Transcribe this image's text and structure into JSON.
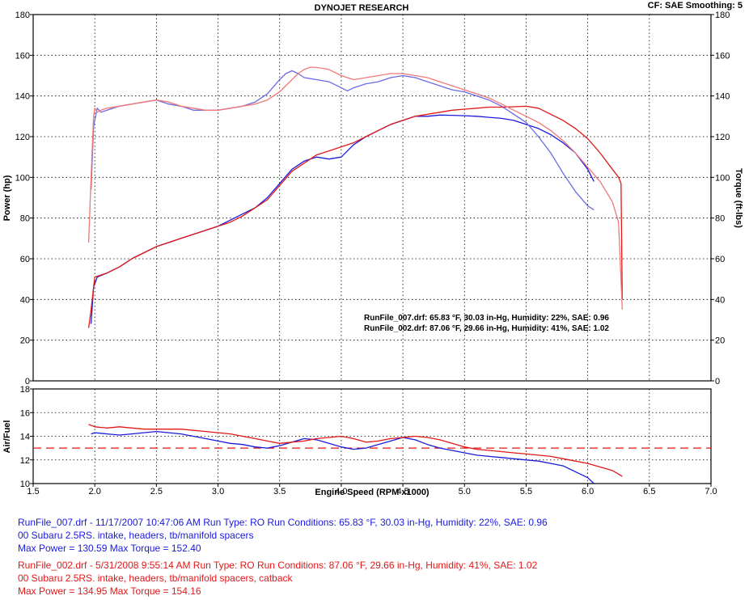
{
  "header": {
    "title": "DYNOJET RESEARCH",
    "settings": "CF: SAE  Smoothing: 5"
  },
  "chart_data": [
    {
      "type": "line",
      "xlabel": "Engine Speed (RPM x1000)",
      "ylabel": "Power (hp)",
      "y2label": "Torque (ft-lbs)",
      "xlim": [
        1.5,
        7.0
      ],
      "ylim": [
        0,
        180
      ],
      "y2lim": [
        0,
        180
      ],
      "grid": true,
      "xticks": [
        "1.5",
        "2.0",
        "2.5",
        "3.0",
        "3.5",
        "4.0",
        "4.5",
        "5.0",
        "5.5",
        "6.0",
        "6.5",
        "7.0"
      ],
      "yticks": [
        "0",
        "20",
        "40",
        "60",
        "80",
        "100",
        "120",
        "140",
        "160",
        "180"
      ],
      "annotations": [
        "RunFile_007.drf: 65.83 °F, 30.03 in-Hg, Humidity: 22%, SAE: 0.96",
        "RunFile_002.drf: 87.06 °F, 29.66 in-Hg, Humidity: 41%, SAE: 1.02"
      ],
      "series": [
        {
          "kind": "power",
          "color": "#1a1adc",
          "x": [
            1.97,
            1.99,
            2.02,
            2.1,
            2.2,
            2.3,
            2.4,
            2.5,
            2.6,
            2.7,
            2.8,
            2.9,
            3.0,
            3.1,
            3.2,
            3.3,
            3.4,
            3.5,
            3.6,
            3.7,
            3.8,
            3.9,
            4.0,
            4.1,
            4.2,
            4.3,
            4.4,
            4.5,
            4.6,
            4.7,
            4.8,
            4.9,
            5.0,
            5.1,
            5.2,
            5.3,
            5.4,
            5.5,
            5.6,
            5.7,
            5.8,
            5.9,
            6.0,
            6.05
          ],
          "y": [
            28,
            46,
            51,
            53,
            56,
            60,
            63,
            66,
            68,
            70,
            72,
            74,
            76,
            79,
            82,
            85,
            90,
            97,
            104,
            108,
            110,
            109,
            110,
            116,
            120,
            123,
            126,
            128,
            130,
            130,
            130.6,
            130.5,
            130.3,
            130,
            129.5,
            129,
            128,
            126,
            124,
            121,
            117,
            112,
            104,
            98
          ]
        },
        {
          "kind": "torque",
          "color": "#6a6ae6",
          "x": [
            1.97,
            1.99,
            2.02,
            2.05,
            2.1,
            2.2,
            2.3,
            2.4,
            2.5,
            2.6,
            2.7,
            2.8,
            2.9,
            3.0,
            3.1,
            3.2,
            3.3,
            3.4,
            3.5,
            3.55,
            3.6,
            3.65,
            3.7,
            3.8,
            3.9,
            4.0,
            4.05,
            4.1,
            4.2,
            4.3,
            4.4,
            4.5,
            4.6,
            4.7,
            4.8,
            4.9,
            5.0,
            5.1,
            5.2,
            5.3,
            5.4,
            5.5,
            5.6,
            5.7,
            5.8,
            5.9,
            6.0,
            6.05
          ],
          "y": [
            94,
            125,
            134,
            132,
            133,
            135,
            136,
            137,
            138,
            136,
            135,
            133,
            133,
            133,
            134,
            135,
            137,
            141,
            148,
            151,
            152.4,
            151,
            149,
            148,
            147,
            144,
            142.5,
            144,
            146,
            147,
            149,
            150,
            149,
            147,
            145,
            143,
            142,
            140,
            138,
            135,
            131,
            127,
            120,
            112,
            102,
            93,
            86,
            84
          ]
        },
        {
          "kind": "power",
          "color": "#e01818",
          "x": [
            1.95,
            1.97,
            2.0,
            2.05,
            2.1,
            2.2,
            2.3,
            2.4,
            2.5,
            2.6,
            2.7,
            2.8,
            2.9,
            3.0,
            3.1,
            3.2,
            3.3,
            3.4,
            3.5,
            3.6,
            3.7,
            3.8,
            3.9,
            4.0,
            4.1,
            4.2,
            4.3,
            4.4,
            4.5,
            4.6,
            4.7,
            4.8,
            4.9,
            5.0,
            5.1,
            5.2,
            5.3,
            5.4,
            5.5,
            5.6,
            5.7,
            5.8,
            5.9,
            6.0,
            6.1,
            6.2,
            6.25,
            6.27,
            6.28
          ],
          "y": [
            26,
            35,
            51,
            52,
            53,
            56,
            60,
            63,
            66,
            68,
            70,
            72,
            74,
            76,
            78,
            81,
            85,
            89,
            96,
            103,
            107,
            111,
            113,
            115,
            117,
            120,
            123,
            126,
            128,
            130,
            131,
            132,
            133,
            133.5,
            134,
            134.5,
            134.5,
            134.7,
            134.95,
            134,
            131,
            128,
            124,
            119,
            112,
            104,
            100,
            97,
            40
          ]
        },
        {
          "kind": "torque",
          "color": "#f07878",
          "x": [
            1.95,
            1.97,
            1.99,
            2.0,
            2.02,
            2.05,
            2.1,
            2.2,
            2.3,
            2.4,
            2.5,
            2.6,
            2.7,
            2.8,
            2.9,
            3.0,
            3.1,
            3.2,
            3.3,
            3.4,
            3.5,
            3.6,
            3.65,
            3.7,
            3.75,
            3.8,
            3.9,
            4.0,
            4.1,
            4.2,
            4.3,
            4.4,
            4.5,
            4.6,
            4.7,
            4.8,
            4.9,
            5.0,
            5.1,
            5.2,
            5.3,
            5.4,
            5.5,
            5.6,
            5.7,
            5.8,
            5.9,
            6.0,
            6.1,
            6.2,
            6.25,
            6.28
          ],
          "y": [
            68,
            100,
            130,
            134,
            132,
            133,
            134,
            135,
            136,
            137,
            138,
            137,
            135,
            134,
            133,
            133,
            134,
            135,
            136,
            138,
            142,
            148,
            151,
            153,
            154.16,
            154,
            153,
            150,
            148,
            149,
            150,
            151,
            151,
            150,
            149,
            147,
            145,
            143,
            141,
            139,
            136,
            133,
            130,
            127,
            123,
            118,
            112,
            105,
            98,
            88,
            78,
            35
          ]
        }
      ]
    },
    {
      "type": "line",
      "ylabel": "Air/Fuel",
      "xlim": [
        1.5,
        7.0
      ],
      "ylim": [
        10,
        18
      ],
      "yticks": [
        "10",
        "12",
        "14",
        "16",
        "18"
      ],
      "reference_line": 13,
      "reference_color": "#e01818",
      "series": [
        {
          "color": "#1a1adc",
          "x": [
            1.97,
            2.0,
            2.1,
            2.2,
            2.3,
            2.4,
            2.5,
            2.6,
            2.7,
            2.8,
            2.9,
            3.0,
            3.1,
            3.2,
            3.3,
            3.4,
            3.5,
            3.6,
            3.7,
            3.8,
            3.9,
            4.0,
            4.1,
            4.2,
            4.3,
            4.4,
            4.5,
            4.6,
            4.7,
            4.8,
            4.9,
            5.0,
            5.1,
            5.2,
            5.3,
            5.4,
            5.5,
            5.6,
            5.7,
            5.8,
            5.9,
            6.0,
            6.05
          ],
          "y": [
            14.2,
            14.3,
            14.2,
            14.1,
            14.2,
            14.3,
            14.4,
            14.3,
            14.2,
            14.0,
            13.8,
            13.6,
            13.4,
            13.3,
            13.1,
            13.0,
            13.2,
            13.5,
            13.8,
            13.7,
            13.4,
            13.1,
            12.9,
            13.0,
            13.3,
            13.6,
            13.9,
            13.7,
            13.3,
            13.0,
            12.8,
            12.6,
            12.4,
            12.3,
            12.2,
            12.1,
            12.0,
            11.9,
            11.7,
            11.5,
            11.0,
            10.5,
            10.0
          ]
        },
        {
          "color": "#e01818",
          "x": [
            1.95,
            2.0,
            2.1,
            2.2,
            2.3,
            2.4,
            2.5,
            2.6,
            2.7,
            2.8,
            2.9,
            3.0,
            3.1,
            3.2,
            3.3,
            3.4,
            3.5,
            3.6,
            3.7,
            3.8,
            3.9,
            4.0,
            4.1,
            4.2,
            4.3,
            4.4,
            4.5,
            4.6,
            4.7,
            4.8,
            4.9,
            5.0,
            5.1,
            5.2,
            5.3,
            5.4,
            5.5,
            5.6,
            5.7,
            5.8,
            5.9,
            6.0,
            6.1,
            6.2,
            6.25,
            6.28
          ],
          "y": [
            15.0,
            14.8,
            14.7,
            14.8,
            14.7,
            14.6,
            14.6,
            14.6,
            14.6,
            14.5,
            14.4,
            14.3,
            14.2,
            14.0,
            13.8,
            13.6,
            13.4,
            13.5,
            13.6,
            13.8,
            13.9,
            14.0,
            13.8,
            13.5,
            13.6,
            13.8,
            13.9,
            14.0,
            13.9,
            13.7,
            13.4,
            13.1,
            12.9,
            12.8,
            12.7,
            12.6,
            12.5,
            12.4,
            12.3,
            12.1,
            11.9,
            11.7,
            11.4,
            11.1,
            10.8,
            10.6
          ]
        }
      ]
    }
  ],
  "runs": [
    {
      "color": "#1a1adc",
      "line1": "RunFile_007.drf - 11/17/2007 10:47:06 AM  Run Type: RO  Run Conditions: 65.83 °F, 30.03 in-Hg,  Humidity:  22%, SAE: 0.96",
      "line2": "00 Subaru 2.5RS. intake, headers, tb/manifold spacers",
      "line3": "Max Power = 130.59  Max Torque = 152.40"
    },
    {
      "color": "#e01818",
      "line1": "RunFile_002.drf - 5/31/2008 9:55:14 AM  Run Type: RO  Run Conditions: 87.06 °F, 29.66 in-Hg,  Humidity:  41%, SAE: 1.02",
      "line2": "00 Subaru 2.5RS. intake, headers, tb/manifold spacers, catback",
      "line3": "Max Power = 134.95  Max Torque = 154.16"
    }
  ]
}
